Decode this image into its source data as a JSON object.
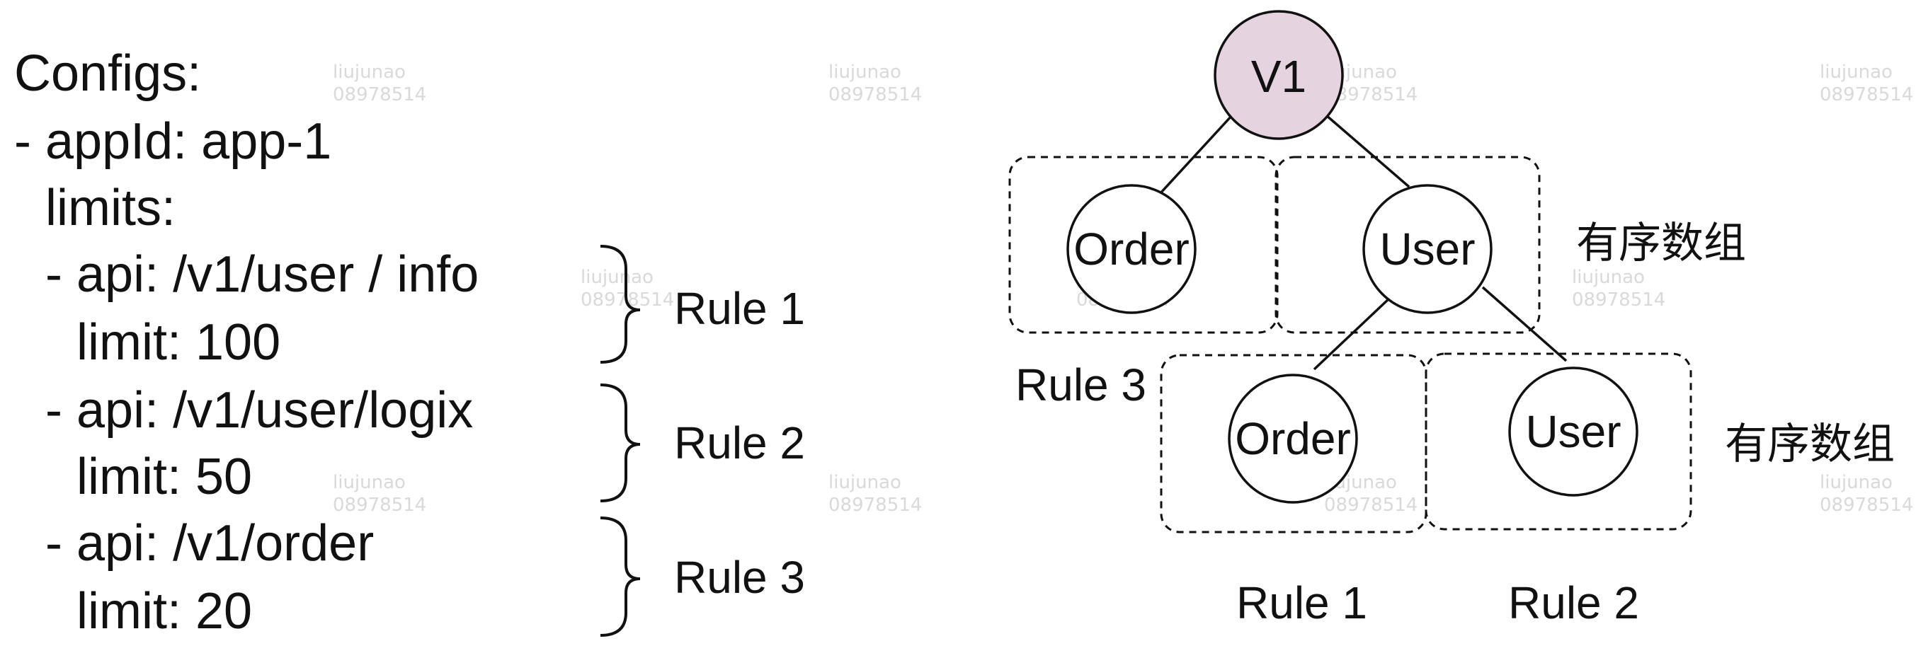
{
  "config": {
    "lines": [
      "Configs:",
      "- appId: app-1",
      "limits:",
      "- api: /v1/user / info",
      "limit: 100",
      "- api: /v1/user/logix",
      "limit: 50",
      "- api: /v1/order",
      "limit: 20"
    ],
    "rule_labels": [
      "Rule 1",
      "Rule 2",
      "Rule 3"
    ]
  },
  "tree": {
    "root": "V1",
    "level1": [
      "Order",
      "User"
    ],
    "level2": [
      "Order",
      "User"
    ],
    "ordered_array_label": "有序数组",
    "group_labels": {
      "left": "Rule 3",
      "bottom_left": "Rule 1",
      "bottom_right": "Rule 2"
    },
    "colors": {
      "root_fill": "#e5d3df",
      "node_fill": "#ffffff",
      "stroke": "#111111"
    }
  },
  "watermark": {
    "name": "liujunao",
    "id": "08978514"
  }
}
